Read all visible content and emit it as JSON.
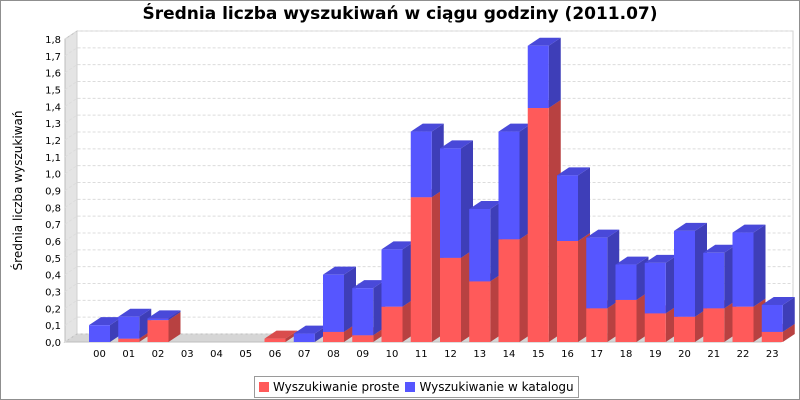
{
  "colors": {
    "series_0": "#FF5A5A",
    "series_1": "#5656FF",
    "floor": "#d6d6d6",
    "gridline": "#dcdcdc"
  },
  "chart_data": {
    "type": "bar",
    "stacked": true,
    "three_d": true,
    "title": "Średnia liczba wyszukiwań w ciągu godziny (2011.07)",
    "xlabel": "",
    "ylabel": "Średnia liczba wyszukiwań",
    "ylim": [
      0,
      1.8
    ],
    "yticks": [
      "0,0",
      "0,1",
      "0,2",
      "0,3",
      "0,4",
      "0,5",
      "0,6",
      "0,7",
      "0,8",
      "0,9",
      "1,0",
      "1,1",
      "1,2",
      "1,3",
      "1,4",
      "1,5",
      "1,6",
      "1,7",
      "1,8"
    ],
    "grid": true,
    "legend_position": "bottom",
    "categories": [
      "00",
      "01",
      "02",
      "03",
      "04",
      "05",
      "06",
      "07",
      "08",
      "09",
      "10",
      "11",
      "12",
      "13",
      "14",
      "15",
      "16",
      "17",
      "18",
      "19",
      "20",
      "21",
      "22",
      "23"
    ],
    "series": [
      {
        "name": "Wyszukiwanie proste",
        "values": [
          0.0,
          0.02,
          0.13,
          0,
          0,
          0,
          0.02,
          0.0,
          0.06,
          0.04,
          0.21,
          0.86,
          0.5,
          0.36,
          0.61,
          1.39,
          0.6,
          0.2,
          0.25,
          0.17,
          0.15,
          0.2,
          0.21,
          0.06
        ]
      },
      {
        "name": "Wyszukiwanie w katalogu",
        "values": [
          0.1,
          0.13,
          0.01,
          0,
          0,
          0,
          0.0,
          0.05,
          0.34,
          0.28,
          0.34,
          0.39,
          0.65,
          0.43,
          0.64,
          0.37,
          0.39,
          0.42,
          0.21,
          0.3,
          0.51,
          0.33,
          0.44,
          0.16
        ]
      }
    ]
  }
}
